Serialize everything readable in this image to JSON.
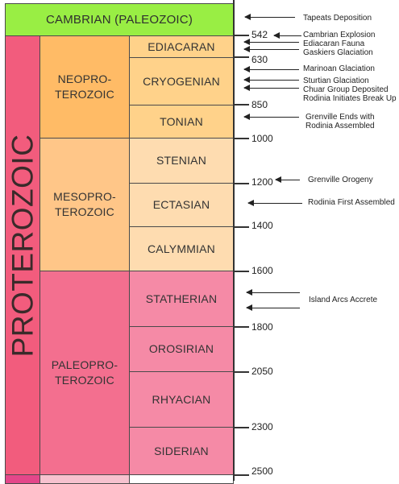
{
  "colors": {
    "cambrian": "#99ee44",
    "eon": "#f25c7d",
    "neoproterozoic": "#ffbb66",
    "neo_period": "#ffd28a",
    "mesoproterozoic": "#ffc688",
    "meso_period": "#fedcb0",
    "paleoproterozoic": "#f36f8f",
    "paleo_period": "#f58aa6",
    "line": "#333333"
  },
  "cambrian_label": "CAMBRIAN (PALEOZOIC)",
  "eon_label": "PROTEROZOIC",
  "eras": {
    "neo": [
      "NEOPRO-",
      "TEROZOIC"
    ],
    "meso": [
      "MESOPRO-",
      "TEROZOIC"
    ],
    "paleo": [
      "PALEOPRO-",
      "TEROZOIC"
    ]
  },
  "periods": {
    "ediacaran": "EDIACARAN",
    "cryogenian": "CRYOGENIAN",
    "tonian": "TONIAN",
    "stenian": "STENIAN",
    "ectasian": "ECTASIAN",
    "calymmian": "CALYMMIAN",
    "statherian": "STATHERIAN",
    "orosirian": "OROSIRIAN",
    "rhyacian": "RHYACIAN",
    "siderian": "SIDERIAN"
  },
  "ages": [
    "542",
    "630",
    "850",
    "1000",
    "1200",
    "1400",
    "1600",
    "1800",
    "2050",
    "2300",
    "2500"
  ],
  "events": {
    "tapeats": "Tapeats Deposition",
    "cambrian_explosion": "Cambrian Explosion",
    "ediacaran_fauna": "Ediacaran Fauna",
    "gaskiers": "Gaskiers Glaciation",
    "marinoan": "Marinoan Glaciation",
    "sturtian": "Sturtian Glaciation",
    "chuar": "Chuar Group Deposited",
    "rodinia_breakup": "Rodinia Initiates Break Up",
    "grenville_ends_1": "Grenville Ends with",
    "grenville_ends_2": "Rodinia Assembled",
    "grenville_orogeny": "Grenville Orogeny",
    "rodinia_first": "Rodinia First Assembled",
    "island_arcs": "Island Arcs Accrete"
  }
}
